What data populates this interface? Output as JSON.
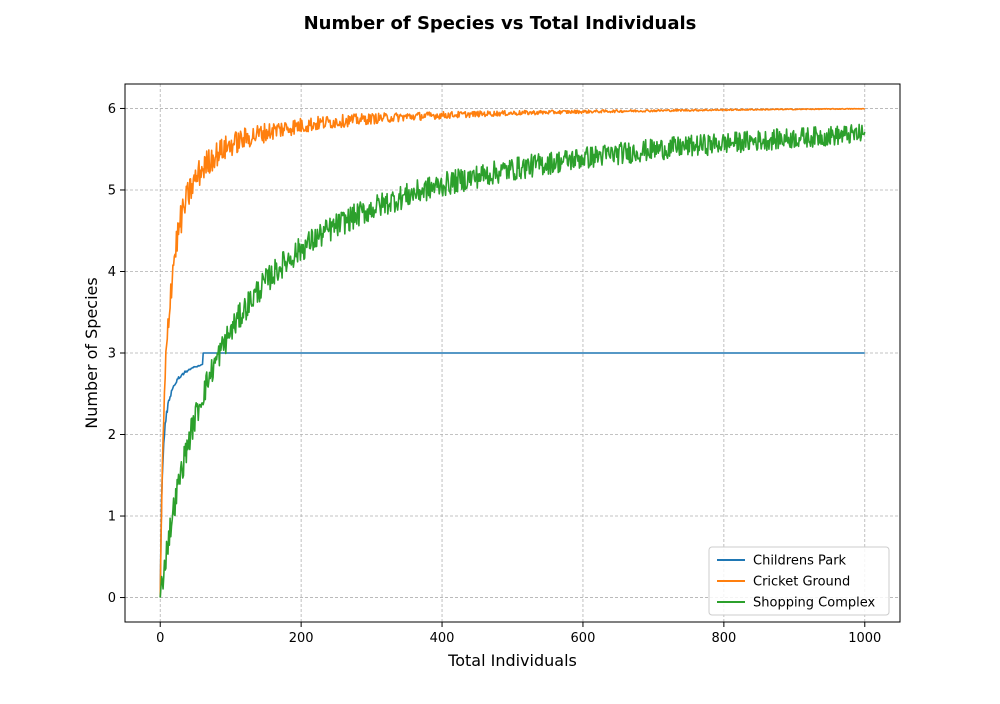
{
  "chart_data": {
    "type": "line",
    "title": "Number of Species vs Total Individuals",
    "xlabel": "Total Individuals",
    "ylabel": "Number of Species",
    "xlim": [
      -50,
      1050
    ],
    "ylim": [
      -0.3,
      6.3
    ],
    "xticks": [
      0,
      200,
      400,
      600,
      800,
      1000
    ],
    "yticks": [
      0,
      1,
      2,
      3,
      4,
      5,
      6
    ],
    "grid": true,
    "legend_position": "lower-right",
    "series": [
      {
        "name": "Childrens Park",
        "color": "#1f77b4",
        "model": {
          "max": 3,
          "half_saturation": 3.0,
          "noise_amplitude": 0.05,
          "noise_decay": 30
        }
      },
      {
        "name": "Cricket Ground",
        "color": "#ff7f0e",
        "model": {
          "max": 6.05,
          "half_saturation": 9.0,
          "noise_amplitude": 0.22,
          "noise_decay": 250
        }
      },
      {
        "name": "Shopping Complex",
        "color": "#2ca02c",
        "model": {
          "max": 6.2,
          "half_saturation": 90.0,
          "noise_amplitude": 0.17,
          "noise_decay": 3000
        }
      }
    ],
    "x_range": [
      0,
      1000
    ]
  }
}
